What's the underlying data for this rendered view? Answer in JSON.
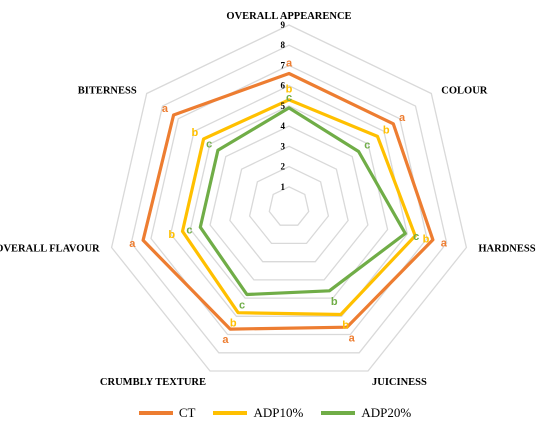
{
  "chart_data": {
    "type": "radar",
    "axes": [
      "OVERALL APPEARENCE",
      "COLOUR",
      "HARDNESS",
      "JUICINESS",
      "CRUMBLY TEXTURE",
      "OVERALL FLAVOUR",
      "BITERNESS"
    ],
    "tick_labels": [
      "1",
      "2",
      "3",
      "4",
      "5",
      "6",
      "7",
      "8",
      "9"
    ],
    "rlim": [
      0,
      9
    ],
    "series": [
      {
        "name": "CT",
        "color": "#ed7d31",
        "values": [
          6.6,
          6.6,
          7.3,
          6.6,
          6.7,
          7.4,
          7.3
        ],
        "sig": [
          "a",
          "a",
          "a",
          "a",
          "a",
          "a",
          "a"
        ],
        "sig_color": "#ed7d31"
      },
      {
        "name": "ADP10%",
        "color": "#ffc000",
        "values": [
          5.3,
          5.6,
          6.4,
          5.9,
          5.8,
          5.4,
          5.4
        ],
        "sig": [
          "b",
          "b",
          "b",
          "b",
          "b",
          "b",
          "b"
        ],
        "sig_color": "#ffc000"
      },
      {
        "name": "ADP20%",
        "color": "#70ad47",
        "values": [
          4.9,
          4.4,
          5.9,
          4.6,
          4.8,
          4.5,
          4.5
        ],
        "sig": [
          "c",
          "c",
          "c",
          "b",
          "c",
          "c",
          "c"
        ],
        "sig_color": "#70ad47"
      }
    ],
    "grid_color": "#d9d9d9",
    "legend_position": "bottom"
  },
  "legend": {
    "items": [
      "CT",
      "ADP10%",
      "ADP20%"
    ]
  }
}
